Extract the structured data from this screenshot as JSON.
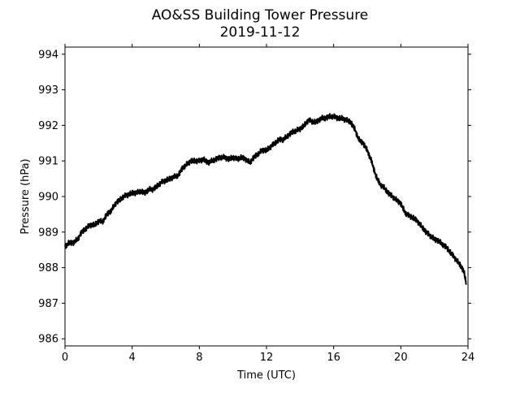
{
  "chart_data": {
    "type": "line",
    "title": "AO&SS Building Tower Pressure",
    "subtitle": "2019-11-12",
    "xlabel": "Time (UTC)",
    "ylabel": "Pressure (hPa)",
    "xlim": [
      0,
      24
    ],
    "ylim": [
      985.8,
      994.2
    ],
    "xticks": [
      0,
      4,
      8,
      12,
      16,
      20,
      24
    ],
    "yticks": [
      986,
      987,
      988,
      989,
      990,
      991,
      992,
      993,
      994
    ],
    "grid": false,
    "legend": "none",
    "series": [
      {
        "color": "#000000",
        "x": [
          0,
          0.25,
          0.5,
          0.75,
          1.0,
          1.25,
          1.5,
          1.75,
          2.0,
          2.25,
          2.5,
          2.75,
          3.0,
          3.25,
          3.5,
          3.75,
          4.0,
          4.25,
          4.5,
          4.75,
          5.0,
          5.25,
          5.5,
          5.75,
          6.0,
          6.25,
          6.5,
          6.75,
          7.0,
          7.25,
          7.5,
          7.75,
          8.0,
          8.25,
          8.5,
          8.75,
          9.0,
          9.25,
          9.5,
          9.75,
          10.0,
          10.25,
          10.5,
          10.75,
          11.0,
          11.25,
          11.5,
          11.75,
          12.0,
          12.25,
          12.5,
          12.75,
          13.0,
          13.25,
          13.5,
          13.75,
          14.0,
          14.25,
          14.5,
          14.75,
          15.0,
          15.25,
          15.5,
          15.75,
          16.0,
          16.25,
          16.5,
          16.75,
          17.0,
          17.25,
          17.5,
          17.75,
          18.0,
          18.25,
          18.5,
          18.75,
          19.0,
          19.25,
          19.5,
          19.75,
          20.0,
          20.25,
          20.5,
          20.75,
          21.0,
          21.25,
          21.5,
          21.75,
          22.0,
          22.25,
          22.5,
          22.75,
          23.0,
          23.25,
          23.5,
          23.75,
          23.9
        ],
        "values": [
          988.6,
          988.7,
          988.7,
          988.8,
          989.0,
          989.1,
          989.2,
          989.2,
          989.3,
          989.3,
          989.5,
          989.6,
          989.8,
          989.9,
          990.0,
          990.05,
          990.1,
          990.1,
          990.15,
          990.1,
          990.2,
          990.2,
          990.3,
          990.4,
          990.45,
          990.5,
          990.55,
          990.6,
          990.8,
          990.9,
          991.0,
          991.0,
          991.0,
          991.05,
          990.95,
          991.0,
          991.05,
          991.1,
          991.1,
          991.05,
          991.1,
          991.05,
          991.1,
          991.05,
          990.95,
          991.1,
          991.2,
          991.3,
          991.3,
          991.4,
          991.5,
          991.6,
          991.6,
          991.7,
          991.8,
          991.85,
          991.9,
          992.0,
          992.15,
          992.1,
          992.1,
          992.2,
          992.2,
          992.25,
          992.25,
          992.2,
          992.2,
          992.15,
          992.1,
          991.9,
          991.6,
          991.5,
          991.3,
          991.0,
          990.6,
          990.35,
          990.25,
          990.1,
          990.0,
          989.9,
          989.8,
          989.55,
          989.45,
          989.4,
          989.3,
          989.15,
          989.0,
          988.9,
          988.8,
          988.75,
          988.65,
          988.55,
          988.4,
          988.25,
          988.1,
          987.9,
          987.55
        ]
      }
    ]
  }
}
